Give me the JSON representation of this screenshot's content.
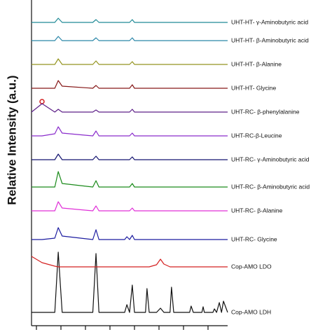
{
  "chart_data": {
    "type": "line",
    "y_label": "Relative Intensity (a.u.)",
    "x": [
      0,
      4.3,
      9.5,
      10.9,
      12.5,
      25,
      26.3,
      27.5,
      38,
      38.9,
      40,
      41.1,
      42,
      46.5,
      47.1,
      48,
      51,
      52.6,
      54,
      56.5,
      57.1,
      58,
      64.5,
      65.1,
      66,
      69.5,
      70,
      70.5,
      74,
      74.6,
      75.5,
      76.6,
      77.5,
      78.3,
      80
    ],
    "xlim": [
      0,
      80
    ],
    "xticks": [
      2,
      12,
      22,
      32,
      42,
      52,
      62,
      72
    ],
    "ylim": [
      0,
      465
    ],
    "series": [
      {
        "name": "Cop-AMO LDH",
        "color": "#111111",
        "values": [
          19,
          19,
          19,
          105,
          19,
          19,
          103,
          19,
          19,
          30,
          19,
          58,
          19,
          19,
          53,
          19,
          19,
          25,
          19,
          19,
          55,
          19,
          19,
          28,
          19,
          19,
          27,
          19,
          19,
          24,
          19,
          33,
          19,
          35,
          19
        ]
      },
      {
        "name": "Cop-AMO LDO",
        "color": "#d42020",
        "values": [
          99,
          90,
          85,
          84,
          84,
          84,
          84,
          84,
          84,
          84,
          84,
          84,
          84,
          84,
          84,
          84,
          87,
          95,
          88,
          84,
          84,
          84,
          84,
          84,
          84,
          84,
          84,
          84,
          84,
          84,
          84,
          84,
          84,
          84,
          84
        ]
      },
      {
        "name": "UHT-RC- Glycine",
        "color": "#1c1ca0",
        "values": [
          123,
          123,
          125,
          140,
          128,
          123,
          137,
          123,
          123,
          127,
          123,
          129,
          123,
          123,
          123,
          123,
          123,
          123,
          123,
          123,
          123,
          123,
          123,
          123,
          123,
          123,
          123,
          123,
          123,
          123,
          123,
          123,
          123,
          123,
          123
        ]
      },
      {
        "name": "UHT-RC- β-Alanine",
        "color": "#e030d8",
        "values": [
          164,
          164,
          164,
          177,
          168,
          164,
          171,
          164,
          164,
          164,
          164,
          168,
          164,
          164,
          164,
          164,
          164,
          164,
          164,
          164,
          164,
          164,
          164,
          164,
          164,
          164,
          164,
          164,
          164,
          164,
          164,
          164,
          164,
          164,
          164
        ]
      },
      {
        "name": "UHT-RC- β-Aminobutyric acid",
        "color": "#1a8a1a",
        "values": [
          198,
          198,
          198,
          220,
          203,
          198,
          207,
          198,
          198,
          198,
          198,
          203,
          198,
          198,
          198,
          198,
          198,
          198,
          198,
          198,
          198,
          198,
          198,
          198,
          198,
          198,
          198,
          198,
          198,
          198,
          198,
          198,
          198,
          198,
          198
        ]
      },
      {
        "name": "UHT-RC- γ-Aminobutyric acid",
        "color": "#141470",
        "values": [
          237,
          237,
          237,
          245,
          237,
          237,
          242,
          237,
          237,
          237,
          237,
          241,
          237,
          237,
          237,
          237,
          237,
          237,
          237,
          237,
          237,
          237,
          237,
          237,
          237,
          237,
          237,
          237,
          237,
          237,
          237,
          237,
          237,
          237,
          237
        ]
      },
      {
        "name": "UHT-RC-β-Leucine",
        "color": "#8a2ccc",
        "values": [
          271,
          271,
          274,
          284,
          275,
          271,
          278,
          271,
          271,
          271,
          271,
          275,
          271,
          271,
          271,
          271,
          271,
          271,
          271,
          271,
          271,
          271,
          271,
          271,
          271,
          271,
          271,
          271,
          271,
          271,
          271,
          271,
          271,
          271,
          271
        ]
      },
      {
        "name": "UHT-RC- β-phenylalanine",
        "color": "#5e2088",
        "values": [
          305,
          317,
          305,
          309,
          305,
          305,
          308,
          305,
          305,
          305,
          305,
          309,
          305,
          305,
          305,
          305,
          305,
          305,
          305,
          305,
          305,
          305,
          305,
          305,
          305,
          305,
          305,
          305,
          305,
          305,
          305,
          305,
          305,
          305,
          305
        ]
      },
      {
        "name": "UHT-HT- Glycine",
        "color": "#861818",
        "values": [
          339,
          339,
          339,
          350,
          342,
          339,
          343,
          339,
          339,
          339,
          339,
          344,
          339,
          339,
          339,
          339,
          339,
          339,
          339,
          339,
          339,
          339,
          339,
          339,
          339,
          339,
          339,
          339,
          339,
          339,
          339,
          339,
          339,
          339,
          339
        ]
      },
      {
        "name": "UHT-HT- β-Alanine",
        "color": "#959520",
        "values": [
          373,
          373,
          373,
          381,
          373,
          373,
          378,
          373,
          373,
          373,
          373,
          377,
          373,
          373,
          373,
          373,
          373,
          373,
          373,
          373,
          373,
          373,
          373,
          373,
          373,
          373,
          373,
          373,
          373,
          373,
          373,
          373,
          373,
          373,
          373
        ]
      },
      {
        "name": "UHT-HT- β-Aminobutyric acid",
        "color": "#2a86a8",
        "values": [
          407,
          407,
          407,
          413,
          407,
          407,
          411,
          407,
          407,
          407,
          407,
          411,
          407,
          407,
          407,
          407,
          407,
          407,
          407,
          407,
          407,
          407,
          407,
          407,
          407,
          407,
          407,
          407,
          407,
          407,
          407,
          407,
          407,
          407,
          407
        ]
      },
      {
        "name": "UHT-HT- γ-Aminobutyric acid",
        "color": "#208a96",
        "values": [
          433,
          433,
          433,
          439,
          433,
          433,
          437,
          433,
          433,
          433,
          433,
          437,
          433,
          433,
          433,
          433,
          433,
          433,
          433,
          433,
          433,
          433,
          433,
          433,
          433,
          433,
          433,
          433,
          433,
          433,
          433,
          433,
          433,
          433,
          433
        ]
      }
    ]
  }
}
